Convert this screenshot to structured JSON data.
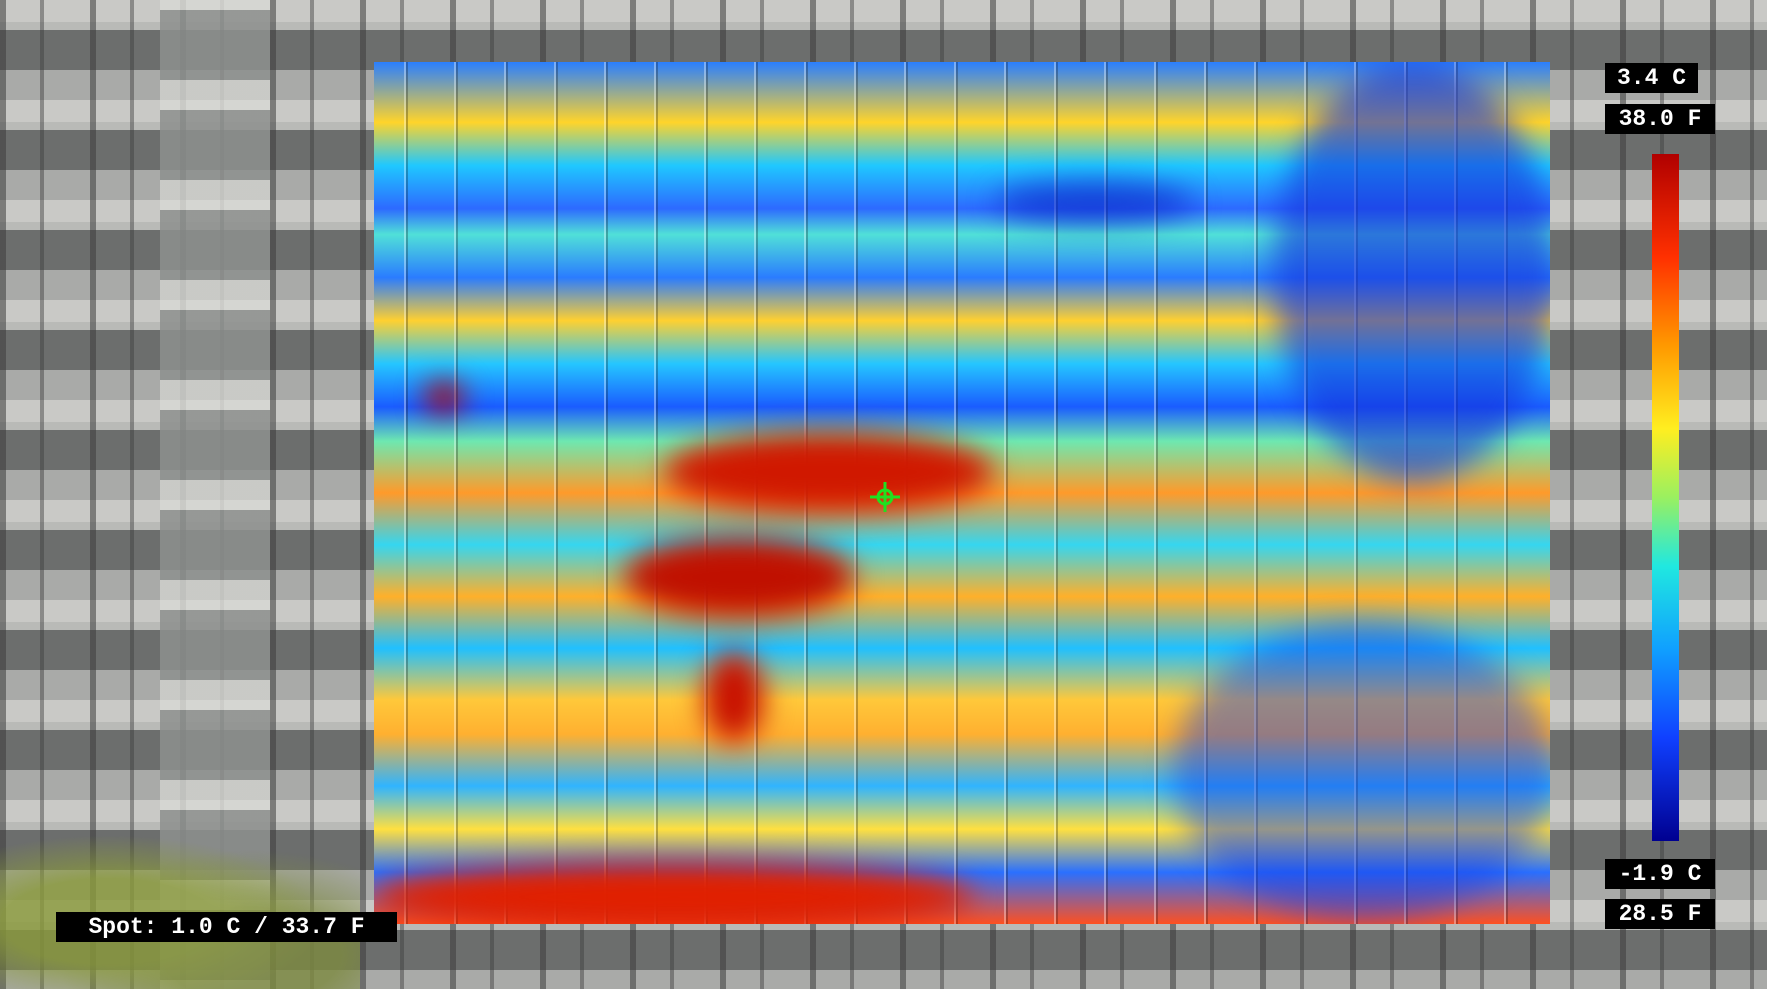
{
  "scale": {
    "top_c": "3.4 C",
    "top_f": "38.0 F",
    "bottom_c": "-1.9 C",
    "bottom_f": "28.5 F"
  },
  "spot": "Spot: 1.0 C / 33.7 F"
}
